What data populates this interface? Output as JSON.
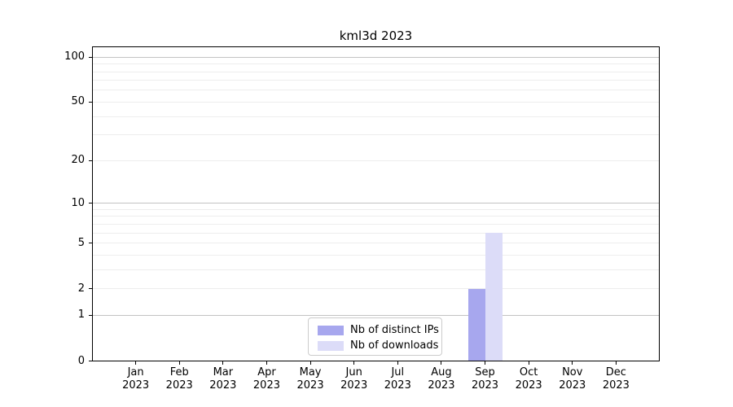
{
  "chart_data": {
    "type": "bar",
    "title": "kml3d 2023",
    "categories": [
      "Jan",
      "Feb",
      "Mar",
      "Apr",
      "May",
      "Jun",
      "Jul",
      "Aug",
      "Sep",
      "Oct",
      "Nov",
      "Dec"
    ],
    "year": "2023",
    "series": [
      {
        "name": "Nb of distinct IPs",
        "color": "#a7a7ee",
        "values": [
          0,
          0,
          0,
          0,
          0,
          0,
          0,
          0,
          2,
          0,
          0,
          0
        ]
      },
      {
        "name": "Nb of downloads",
        "color": "#dcdcf8",
        "values": [
          0,
          0,
          0,
          0,
          0,
          0,
          0,
          0,
          6,
          0,
          0,
          0
        ]
      }
    ],
    "y_scale": "log10(x+1)",
    "y_ticks": [
      0,
      1,
      2,
      5,
      10,
      20,
      50,
      100
    ],
    "ylim": [
      0,
      100
    ],
    "grid": "horizontal, log minor lines, majors at 1/10/100 darker",
    "legend_position": "lower center",
    "axis_color": "#000000"
  }
}
